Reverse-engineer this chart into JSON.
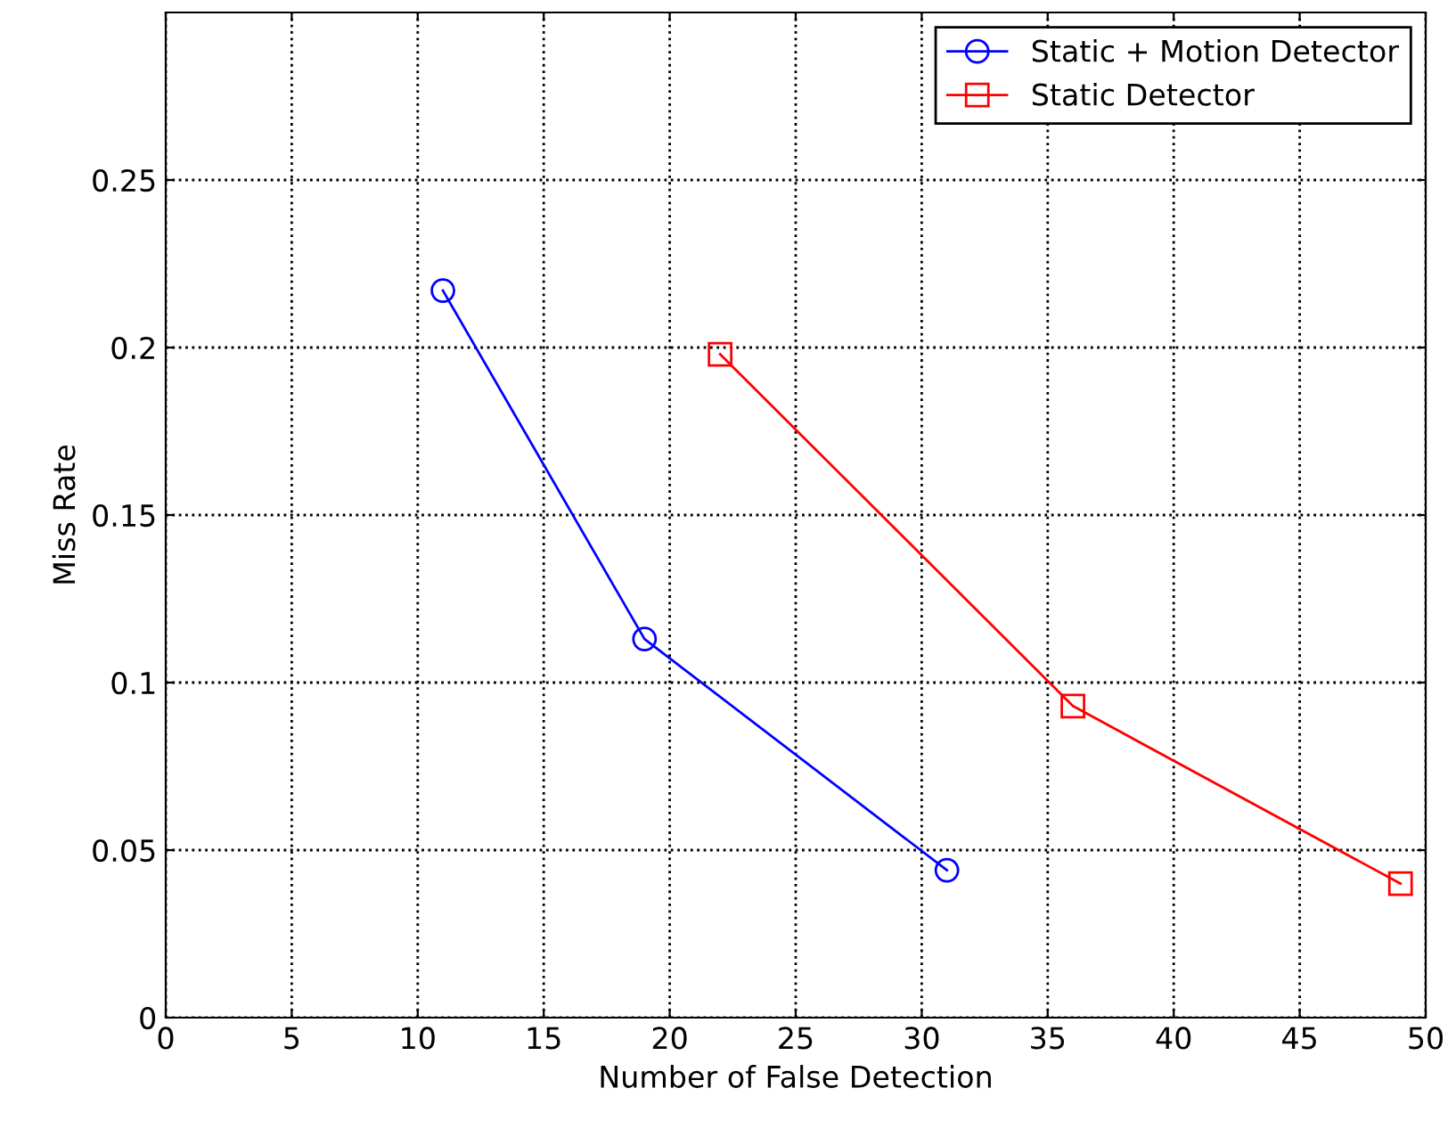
{
  "chart_data": {
    "type": "line",
    "xlabel": "Number of False Detection",
    "ylabel": "Miss Rate",
    "series": [
      {
        "name": "Static + Motion Detector",
        "color": "#0000ff",
        "marker": "circle",
        "x": [
          11,
          19,
          31
        ],
        "values": [
          0.217,
          0.113,
          0.044
        ]
      },
      {
        "name": "Static Detector",
        "color": "#ff0000",
        "marker": "square",
        "x": [
          22,
          36,
          49
        ],
        "values": [
          0.198,
          0.093,
          0.04
        ]
      }
    ],
    "xlim": [
      0,
      50
    ],
    "xticks": [
      0,
      5,
      10,
      15,
      20,
      25,
      30,
      35,
      40,
      45,
      50
    ],
    "ylim": [
      0,
      0.3
    ],
    "yticks": [
      0,
      0.05,
      0.1,
      0.15,
      0.2,
      0.25
    ],
    "grid": true,
    "legend": "top right",
    "line_style": "solid"
  }
}
